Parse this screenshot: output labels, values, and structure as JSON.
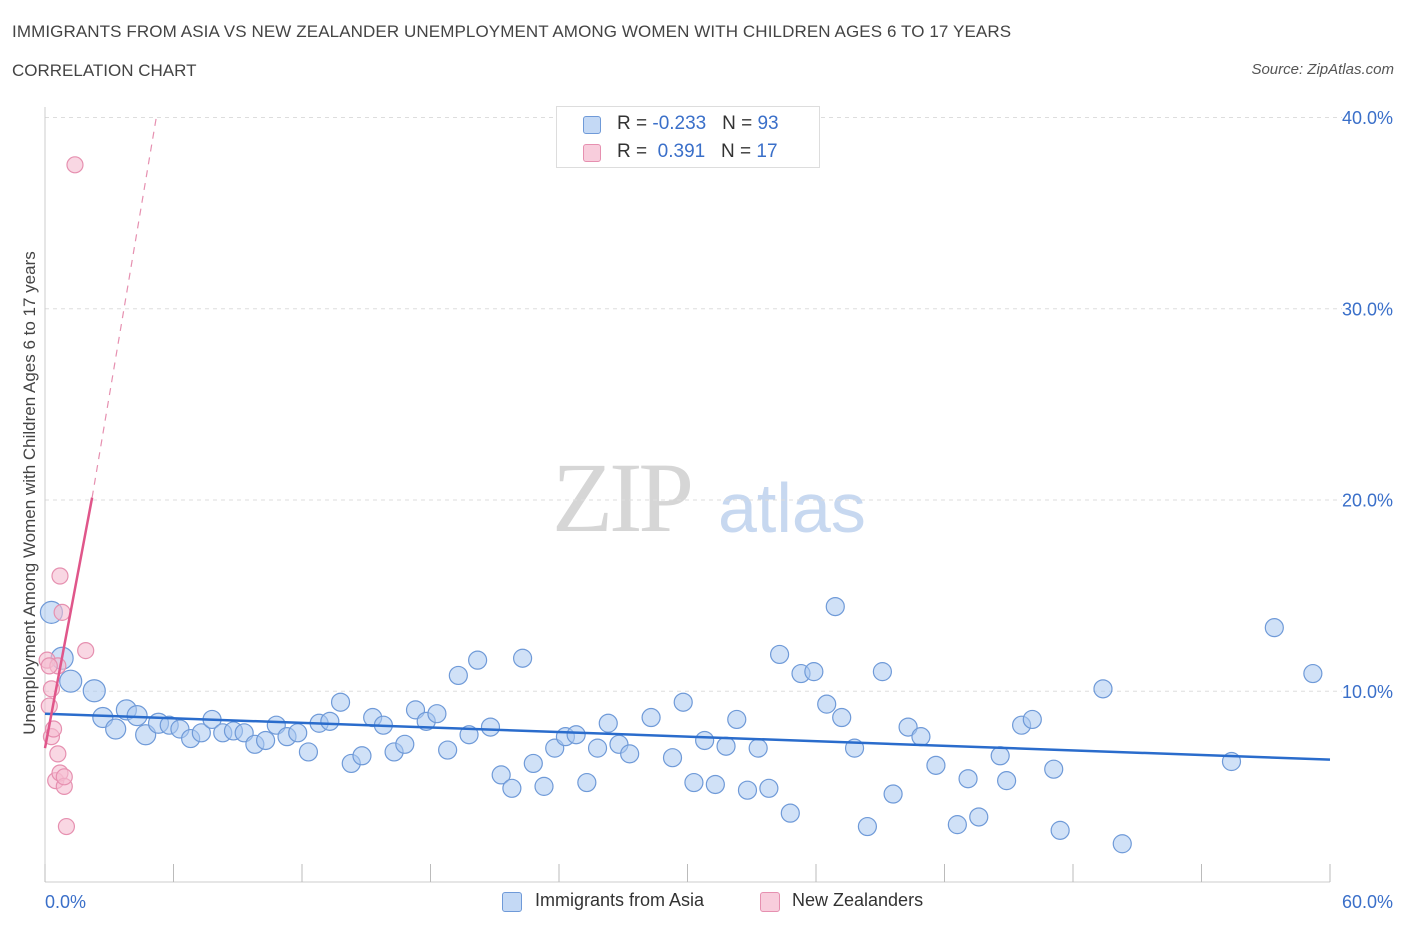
{
  "header": {
    "title": "IMMIGRANTS FROM ASIA VS NEW ZEALANDER UNEMPLOYMENT AMONG WOMEN WITH CHILDREN AGES 6 TO 17 YEARS",
    "subtitle": "CORRELATION CHART",
    "source": "Source: ZipAtlas.com"
  },
  "watermark": {
    "zip": "ZIP",
    "atlas": "atlas"
  },
  "legend": {
    "series1": {
      "r_label": "R = ",
      "r_value": "-0.233",
      "n_label": "N = ",
      "n_value": "93"
    },
    "series2": {
      "r_label": "R = ",
      "r_value": " 0.391",
      "n_label": "N = ",
      "n_value": "17"
    }
  },
  "bottom_legend": {
    "series1_label": "Immigrants from Asia",
    "series2_label": "New Zealanders"
  },
  "colors": {
    "blue_fill": "#aac8f0",
    "blue_stroke": "#6f9ad8",
    "blue_line": "#2a6ccc",
    "pink_fill": "#f5bcd0",
    "pink_stroke": "#e690b0",
    "pink_line": "#e0568a",
    "tick_label": "#3a6fc9",
    "grid": "#dddddd"
  },
  "chart_data": {
    "type": "scatter",
    "title": "IMMIGRANTS FROM ASIA VS NEW ZEALANDER UNEMPLOYMENT AMONG WOMEN WITH CHILDREN AGES 6 TO 17 YEARS",
    "xlabel": "",
    "ylabel": "Unemployment Among Women with Children Ages 6 to 17 years",
    "xlim": [
      0,
      60
    ],
    "ylim": [
      0,
      40
    ],
    "x_tick_labels": [
      "0.0%",
      "60.0%"
    ],
    "y_ticks": [
      10,
      20,
      30,
      40
    ],
    "y_tick_labels": [
      "10.0%",
      "20.0%",
      "30.0%",
      "40.0%"
    ],
    "grid": true,
    "legend_position": "top-center",
    "series": [
      {
        "name": "Immigrants from Asia",
        "color": "#aac8f0",
        "trend": {
          "x": [
            0,
            60
          ],
          "y": [
            8.8,
            6.4
          ]
        },
        "points": [
          {
            "x": 0.3,
            "y": 14.1
          },
          {
            "x": 0.8,
            "y": 11.7
          },
          {
            "x": 1.2,
            "y": 10.5
          },
          {
            "x": 2.3,
            "y": 10.0
          },
          {
            "x": 2.7,
            "y": 8.6
          },
          {
            "x": 3.3,
            "y": 8.0
          },
          {
            "x": 3.8,
            "y": 9.0
          },
          {
            "x": 4.3,
            "y": 8.7
          },
          {
            "x": 4.7,
            "y": 7.7
          },
          {
            "x": 5.3,
            "y": 8.3
          },
          {
            "x": 5.8,
            "y": 8.2
          },
          {
            "x": 6.3,
            "y": 8.0
          },
          {
            "x": 6.8,
            "y": 7.5
          },
          {
            "x": 7.3,
            "y": 7.8
          },
          {
            "x": 7.8,
            "y": 8.5
          },
          {
            "x": 8.3,
            "y": 7.8
          },
          {
            "x": 8.8,
            "y": 7.9
          },
          {
            "x": 9.3,
            "y": 7.8
          },
          {
            "x": 9.8,
            "y": 7.2
          },
          {
            "x": 10.3,
            "y": 7.4
          },
          {
            "x": 10.8,
            "y": 8.2
          },
          {
            "x": 11.3,
            "y": 7.6
          },
          {
            "x": 11.8,
            "y": 7.8
          },
          {
            "x": 12.3,
            "y": 6.8
          },
          {
            "x": 12.8,
            "y": 8.3
          },
          {
            "x": 13.3,
            "y": 8.4
          },
          {
            "x": 13.8,
            "y": 9.4
          },
          {
            "x": 14.3,
            "y": 6.2
          },
          {
            "x": 14.8,
            "y": 6.6
          },
          {
            "x": 15.3,
            "y": 8.6
          },
          {
            "x": 15.8,
            "y": 8.2
          },
          {
            "x": 16.3,
            "y": 6.8
          },
          {
            "x": 16.8,
            "y": 7.2
          },
          {
            "x": 17.3,
            "y": 9.0
          },
          {
            "x": 17.8,
            "y": 8.4
          },
          {
            "x": 18.3,
            "y": 8.8
          },
          {
            "x": 18.8,
            "y": 6.9
          },
          {
            "x": 19.3,
            "y": 10.8
          },
          {
            "x": 19.8,
            "y": 7.7
          },
          {
            "x": 20.2,
            "y": 11.6
          },
          {
            "x": 20.8,
            "y": 8.1
          },
          {
            "x": 21.3,
            "y": 5.6
          },
          {
            "x": 21.8,
            "y": 4.9
          },
          {
            "x": 22.3,
            "y": 11.7
          },
          {
            "x": 22.8,
            "y": 6.2
          },
          {
            "x": 23.3,
            "y": 5.0
          },
          {
            "x": 23.8,
            "y": 7.0
          },
          {
            "x": 24.3,
            "y": 7.6
          },
          {
            "x": 24.8,
            "y": 7.7
          },
          {
            "x": 25.3,
            "y": 5.2
          },
          {
            "x": 25.8,
            "y": 7.0
          },
          {
            "x": 26.3,
            "y": 8.3
          },
          {
            "x": 26.8,
            "y": 7.2
          },
          {
            "x": 27.3,
            "y": 6.7
          },
          {
            "x": 28.3,
            "y": 8.6
          },
          {
            "x": 29.3,
            "y": 6.5
          },
          {
            "x": 29.8,
            "y": 9.4
          },
          {
            "x": 30.3,
            "y": 5.2
          },
          {
            "x": 30.8,
            "y": 7.4
          },
          {
            "x": 31.3,
            "y": 5.1
          },
          {
            "x": 31.8,
            "y": 7.1
          },
          {
            "x": 32.3,
            "y": 8.5
          },
          {
            "x": 32.8,
            "y": 4.8
          },
          {
            "x": 33.3,
            "y": 7.0
          },
          {
            "x": 33.8,
            "y": 4.9
          },
          {
            "x": 34.3,
            "y": 11.9
          },
          {
            "x": 34.8,
            "y": 3.6
          },
          {
            "x": 35.3,
            "y": 10.9
          },
          {
            "x": 35.9,
            "y": 11.0
          },
          {
            "x": 36.5,
            "y": 9.3
          },
          {
            "x": 36.9,
            "y": 14.4
          },
          {
            "x": 37.2,
            "y": 8.6
          },
          {
            "x": 37.8,
            "y": 7.0
          },
          {
            "x": 38.4,
            "y": 2.9
          },
          {
            "x": 39.1,
            "y": 11.0
          },
          {
            "x": 39.6,
            "y": 4.6
          },
          {
            "x": 40.3,
            "y": 8.1
          },
          {
            "x": 40.9,
            "y": 7.6
          },
          {
            "x": 41.6,
            "y": 6.1
          },
          {
            "x": 42.6,
            "y": 3.0
          },
          {
            "x": 43.1,
            "y": 5.4
          },
          {
            "x": 43.6,
            "y": 3.4
          },
          {
            "x": 44.6,
            "y": 6.6
          },
          {
            "x": 44.9,
            "y": 5.3
          },
          {
            "x": 45.6,
            "y": 8.2
          },
          {
            "x": 46.1,
            "y": 8.5
          },
          {
            "x": 47.1,
            "y": 5.9
          },
          {
            "x": 47.4,
            "y": 2.7
          },
          {
            "x": 49.4,
            "y": 10.1
          },
          {
            "x": 50.3,
            "y": 2.0
          },
          {
            "x": 55.4,
            "y": 6.3
          },
          {
            "x": 57.4,
            "y": 13.3
          },
          {
            "x": 59.2,
            "y": 10.9
          }
        ]
      },
      {
        "name": "New Zealanders",
        "color": "#f5bcd0",
        "trend": {
          "x": [
            0,
            2.2
          ],
          "y": [
            7.0,
            20.1
          ]
        },
        "trend_extension": {
          "x": [
            2.2,
            5.2
          ],
          "y": [
            20.1,
            40.0
          ]
        },
        "points": [
          {
            "x": 0.1,
            "y": 11.6
          },
          {
            "x": 0.2,
            "y": 9.2
          },
          {
            "x": 0.3,
            "y": 10.1
          },
          {
            "x": 0.3,
            "y": 7.6
          },
          {
            "x": 0.4,
            "y": 8.0
          },
          {
            "x": 0.5,
            "y": 5.3
          },
          {
            "x": 0.6,
            "y": 11.3
          },
          {
            "x": 0.6,
            "y": 6.7
          },
          {
            "x": 0.7,
            "y": 5.7
          },
          {
            "x": 0.7,
            "y": 16.0
          },
          {
            "x": 0.8,
            "y": 14.1
          },
          {
            "x": 0.9,
            "y": 5.0
          },
          {
            "x": 0.9,
            "y": 5.5
          },
          {
            "x": 1.0,
            "y": 2.9
          },
          {
            "x": 1.4,
            "y": 37.5
          },
          {
            "x": 1.9,
            "y": 12.1
          },
          {
            "x": 0.2,
            "y": 11.3
          }
        ]
      }
    ]
  }
}
